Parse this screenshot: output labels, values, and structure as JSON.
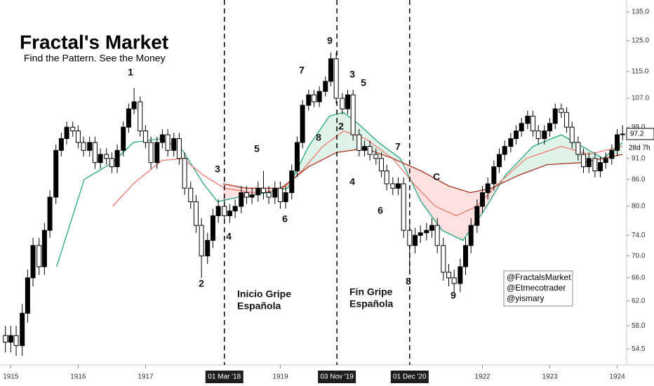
{
  "chart_data": {
    "type": "candlestick",
    "title": "Fractal's Market",
    "subtitle": "Find the Pattern.  See the Money",
    "log_scale": true,
    "xlim": [
      1914.84,
      1924.14
    ],
    "ylim": [
      53,
      139.4
    ],
    "up_color": "#000000",
    "down_color": "#ffffff",
    "xticks": [
      1915,
      1916,
      1917,
      1919,
      1922,
      1923,
      1924
    ],
    "vlines": [
      {
        "value": 1918.17,
        "label": "01 Mar '18"
      },
      {
        "value": 1919.84,
        "label": "03 Nov '19"
      },
      {
        "value": 1920.92,
        "label": "01 Dec '20"
      }
    ],
    "yticks": [
      {
        "value": 135,
        "label": "135.0"
      },
      {
        "value": 125,
        "label": "125.0"
      },
      {
        "value": 115,
        "label": "115.0"
      },
      {
        "value": 107,
        "label": "107.0"
      },
      {
        "value": 99,
        "label": "99.0"
      },
      {
        "value": 91,
        "label": "91.0"
      },
      {
        "value": 86,
        "label": "86.0"
      },
      {
        "value": 80,
        "label": "80.0"
      },
      {
        "value": 74,
        "label": "74.0"
      },
      {
        "value": 70,
        "label": "70.0"
      },
      {
        "value": 66,
        "label": "66.0"
      },
      {
        "value": 62,
        "label": "62.0"
      },
      {
        "value": 58,
        "label": "58.0"
      },
      54.5
    ],
    "countdown": "28d 7h",
    "x": [
      1914.92,
      1915.0,
      1915.08,
      1915.17,
      1915.25,
      1915.33,
      1915.42,
      1915.5,
      1915.58,
      1915.67,
      1915.75,
      1915.83,
      1915.92,
      1916.0,
      1916.08,
      1916.17,
      1916.25,
      1916.33,
      1916.42,
      1916.5,
      1916.58,
      1916.67,
      1916.75,
      1916.83,
      1916.92,
      1917.0,
      1917.08,
      1917.17,
      1917.25,
      1917.33,
      1917.42,
      1917.5,
      1917.58,
      1917.67,
      1917.75,
      1917.83,
      1917.92,
      1918.0,
      1918.08,
      1918.17,
      1918.25,
      1918.33,
      1918.42,
      1918.5,
      1918.58,
      1918.67,
      1918.75,
      1918.83,
      1918.92,
      1919.0,
      1919.08,
      1919.17,
      1919.25,
      1919.33,
      1919.42,
      1919.5,
      1919.58,
      1919.67,
      1919.75,
      1919.83,
      1919.92,
      1920.0,
      1920.08,
      1920.17,
      1920.25,
      1920.33,
      1920.42,
      1920.5,
      1920.58,
      1920.67,
      1920.75,
      1920.83,
      1920.92,
      1921.0,
      1921.08,
      1921.17,
      1921.25,
      1921.33,
      1921.42,
      1921.5,
      1921.58,
      1921.67,
      1921.75,
      1921.83,
      1921.92,
      1922.0,
      1922.08,
      1922.17,
      1922.25,
      1922.33,
      1922.42,
      1922.5,
      1922.58,
      1922.67,
      1922.75,
      1922.83,
      1922.92,
      1923.0,
      1923.08,
      1923.17,
      1923.25,
      1923.33,
      1923.42,
      1923.5,
      1923.58,
      1923.67,
      1923.75,
      1923.83,
      1923.92,
      1924.0,
      1924.08
    ],
    "open": [
      56.5,
      55.5,
      56.5,
      55,
      60,
      66,
      72,
      68,
      75,
      82,
      93,
      96,
      99,
      98,
      95,
      93,
      95,
      90,
      92,
      91,
      89,
      93,
      99,
      104,
      106,
      98,
      95,
      90,
      95,
      97,
      93,
      96,
      91,
      84,
      81,
      76,
      70,
      73,
      78,
      80,
      78,
      79,
      80,
      83,
      82,
      82.5,
      84,
      83,
      82,
      84,
      81,
      83,
      88,
      95,
      105,
      108,
      106,
      109,
      112,
      119,
      107,
      104,
      108,
      97,
      93,
      94,
      92,
      91,
      88,
      85,
      84,
      85,
      75,
      72,
      74,
      74.5,
      75,
      76,
      72,
      67,
      66,
      65,
      68,
      72,
      76,
      80,
      83,
      85,
      89,
      92,
      94,
      96,
      98,
      100,
      102,
      98,
      96,
      98,
      100,
      104,
      103,
      99,
      95,
      92,
      89,
      91,
      88,
      90,
      91,
      93,
      97
    ],
    "high": [
      58,
      58,
      58,
      61.5,
      67.5,
      73.5,
      73.5,
      76.5,
      83.5,
      94.5,
      97.5,
      100.5,
      100.5,
      99.5,
      96.5,
      96.5,
      96.5,
      93.5,
      93.5,
      92.5,
      94.5,
      100.5,
      105.5,
      110,
      107.5,
      99.5,
      96.5,
      96.5,
      98.5,
      98.5,
      97.5,
      97.5,
      92.5,
      85.5,
      82.5,
      77.5,
      74.5,
      79.5,
      81.5,
      81.5,
      80.5,
      81.5,
      84.5,
      84.5,
      84,
      85.5,
      88,
      84.5,
      85.5,
      85.5,
      84.5,
      89.5,
      96.5,
      106.5,
      109.5,
      109.5,
      110.5,
      113.5,
      121,
      121,
      108.5,
      109.5,
      109.5,
      98.5,
      95.5,
      95.5,
      93.5,
      92.5,
      89.5,
      86.5,
      86.5,
      86.5,
      76.5,
      75.5,
      76,
      76.5,
      77.5,
      77.5,
      73.5,
      68.5,
      67.5,
      69.5,
      73.5,
      77.5,
      81.5,
      84.5,
      86.5,
      90.5,
      93.5,
      95.5,
      97.5,
      99.5,
      101.5,
      103.5,
      103.5,
      99.5,
      99.5,
      101.5,
      105.5,
      105.5,
      104.5,
      100.5,
      96.5,
      93.5,
      92.5,
      92.5,
      91.5,
      92.5,
      94.5,
      98.5,
      99.5
    ],
    "low": [
      54,
      54,
      53.5,
      53.5,
      58.5,
      64.5,
      66.5,
      66.5,
      73.5,
      80.5,
      91.5,
      94.5,
      96.5,
      93.5,
      91.5,
      91.5,
      88.5,
      88.5,
      89.5,
      87.5,
      87.5,
      91.5,
      97.5,
      102.5,
      96.5,
      93.5,
      88.5,
      88.5,
      93.5,
      91.5,
      91.5,
      89.5,
      82.5,
      79.5,
      74.5,
      66,
      68.5,
      71.5,
      76.5,
      76.5,
      76.5,
      77.5,
      78.5,
      80.5,
      80.5,
      81,
      81.5,
      80.5,
      80.5,
      79.5,
      79.5,
      81.5,
      86.5,
      93.5,
      103.5,
      104.5,
      104.5,
      107.5,
      110.5,
      105.5,
      102.5,
      102.5,
      95.5,
      91.5,
      91.5,
      90.5,
      89.5,
      86.5,
      83.5,
      82.5,
      82.5,
      73.5,
      67,
      70.5,
      72.5,
      73,
      73.5,
      70.5,
      65.5,
      64.5,
      63.5,
      63.5,
      66.5,
      70.5,
      74.5,
      78.5,
      81.5,
      83.5,
      87.5,
      90.5,
      92.5,
      94.5,
      96.5,
      98.5,
      96.5,
      94.5,
      94.5,
      96.5,
      98.5,
      101.5,
      97.5,
      93.5,
      90.5,
      87.5,
      87.5,
      86.5,
      86.5,
      88.5,
      89.5,
      91.5,
      95.5
    ],
    "close": [
      55.5,
      56.5,
      55,
      60,
      66,
      72,
      68,
      75,
      82,
      93,
      96,
      99,
      98,
      95,
      93,
      95,
      90,
      92,
      91,
      89,
      93,
      99,
      104,
      106,
      98,
      95,
      90,
      95,
      97,
      93,
      96,
      91,
      84,
      81,
      76,
      70,
      73,
      78,
      80,
      78,
      79,
      80,
      83,
      82,
      82.5,
      84,
      83,
      82,
      84,
      81,
      83,
      88,
      95,
      105,
      108,
      106,
      109,
      112,
      119,
      107,
      104,
      108,
      97,
      93,
      94,
      92,
      91,
      88,
      85,
      84,
      85,
      75,
      72,
      74,
      74.5,
      75,
      76,
      72,
      67,
      66,
      65,
      68,
      72,
      76,
      80,
      83,
      85,
      89,
      92,
      94,
      96,
      98,
      100,
      102,
      98,
      96,
      98,
      100,
      104,
      103,
      99,
      95,
      92,
      89,
      91,
      88,
      90,
      91,
      93,
      97,
      97.2
    ],
    "lines": [
      {
        "color": "#26a67c",
        "x": [
          1915.68,
          1916.09,
          1916.51,
          1916.82,
          1917.24,
          1917.55,
          1917.86,
          1918.07,
          1918.38,
          1918.8,
          1919.11,
          1919.42,
          1919.73,
          1919.94,
          1920.15,
          1920.46,
          1920.78,
          1921.09,
          1921.4,
          1921.71,
          1922.02,
          1922.34,
          1922.75,
          1923.17,
          1923.48,
          1923.79,
          1924.08
        ],
        "values": [
          68,
          86,
          90,
          95,
          96,
          93,
          85,
          81,
          82,
          83,
          84,
          94,
          102,
          103,
          100,
          95,
          91,
          81,
          75,
          73,
          79,
          87,
          94,
          97,
          94,
          91,
          95
        ]
      },
      {
        "color": "#ec7a70",
        "x": [
          1916.51,
          1916.82,
          1917.24,
          1917.55,
          1917.86,
          1918.17,
          1918.59,
          1919.01,
          1919.32,
          1919.63,
          1919.94,
          1920.26,
          1920.67,
          1920.98,
          1921.3,
          1921.61,
          1921.92,
          1922.23,
          1922.65,
          1923.17,
          1923.58,
          1924.08
        ],
        "values": [
          80,
          85,
          90.5,
          91,
          87,
          84,
          83,
          83.5,
          88,
          94,
          98,
          96,
          91,
          85,
          80,
          78,
          80,
          85,
          91,
          94,
          92,
          94
        ]
      },
      {
        "color": "#a8321f",
        "x": [
          1918.15,
          1918.49,
          1919.01,
          1919.42,
          1919.84,
          1920.26,
          1920.67,
          1921.09,
          1921.5,
          1921.82,
          1922.13,
          1922.54,
          1922.96,
          1923.48,
          1924.08
        ],
        "values": [
          85,
          84,
          84,
          89,
          92.5,
          93.5,
          91,
          88,
          84.5,
          83,
          84,
          87,
          89.5,
          90,
          92
        ]
      }
    ],
    "annotations": [
      "1",
      "2",
      "3",
      "4",
      "5",
      "6",
      "7",
      "8",
      "9",
      "3",
      "5",
      "2",
      "4",
      "6",
      "7",
      "C",
      "8",
      "9"
    ],
    "notes": [
      [
        "Inicio Gripe",
        "Española"
      ],
      [
        "Fin Gripe",
        "Española"
      ]
    ],
    "credits": [
      "@FractalsMarket",
      "@Etmecotrader",
      "@yismary"
    ]
  }
}
